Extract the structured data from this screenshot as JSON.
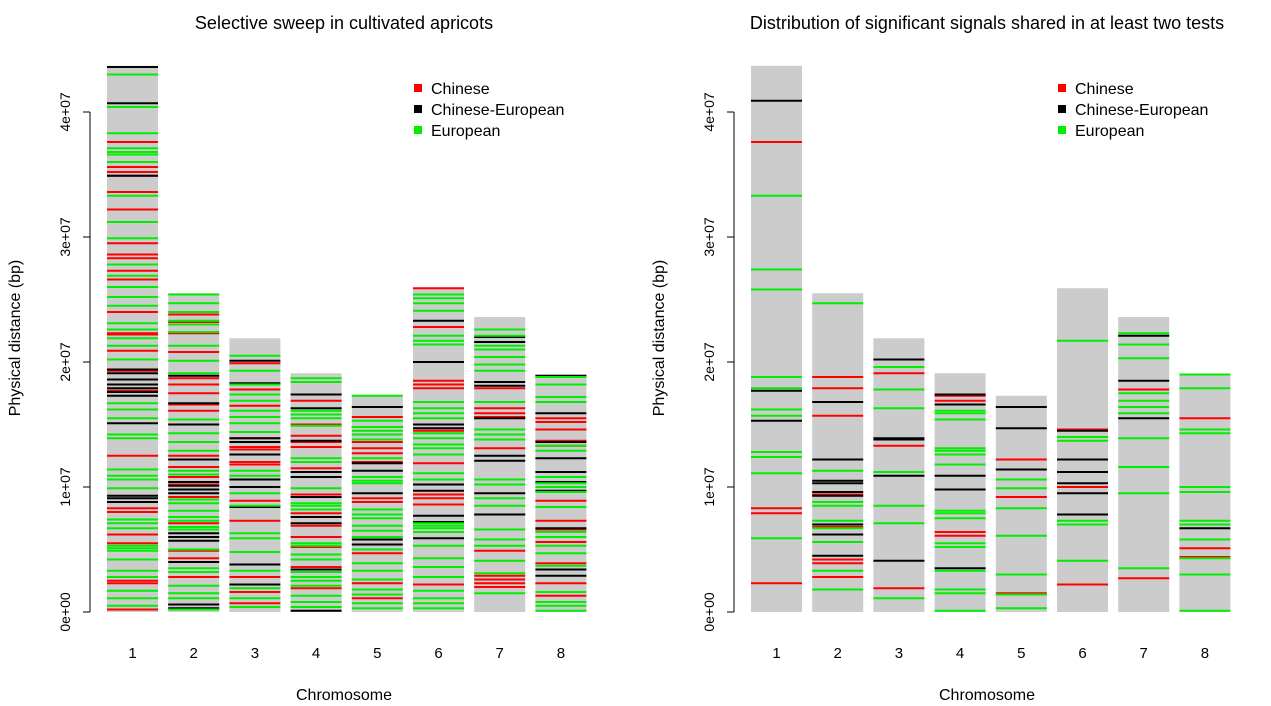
{
  "chart_data": [
    {
      "type": "bar",
      "title": "Selective sweep in cultivated apricots",
      "xlabel": "Chromosome",
      "ylabel": "Physical distance (bp)",
      "categories": [
        "1",
        "2",
        "3",
        "4",
        "5",
        "6",
        "7",
        "8"
      ],
      "chromosome_lengths": [
        43700000,
        25500000,
        21900000,
        19100000,
        17300000,
        25900000,
        23600000,
        19000000
      ],
      "ylim": [
        0,
        43700000
      ],
      "yticks": [
        0,
        10000000,
        20000000,
        30000000,
        40000000
      ],
      "ytick_labels": [
        "0e+00",
        "1e+07",
        "2e+07",
        "3e+07",
        "4e+07"
      ],
      "legend": {
        "position": "top-right",
        "entries": [
          "Chinese",
          "Chinese-European",
          "European"
        ]
      },
      "series": [
        {
          "name": "Chinese",
          "color": "#ff0000",
          "positions": [
            [
              200000,
              2300000,
              2500000,
              5500000,
              6200000,
              8000000,
              8300000,
              12500000,
              17700000,
              19300000,
              20900000,
              22200000,
              22300000,
              24000000,
              26600000,
              27300000,
              28300000,
              28600000,
              29500000,
              32200000,
              33600000,
              34900000,
              35200000,
              35600000,
              37600000,
              43600000
            ],
            [
              600000,
              2800000,
              4300000,
              4900000,
              7100000,
              9200000,
              10200000,
              10800000,
              11600000,
              12500000,
              16100000,
              16600000,
              17500000,
              18200000,
              18700000,
              20800000,
              22300000,
              23200000,
              23800000
            ],
            [
              700000,
              1600000,
              2800000,
              7300000,
              8900000,
              11800000,
              12000000,
              13000000,
              13200000,
              13900000,
              15600000,
              16500000,
              17800000,
              19900000
            ],
            [
              1900000,
              3600000,
              5200000,
              6000000,
              6900000,
              7900000,
              9400000,
              10800000,
              11500000,
              13200000,
              13600000,
              14100000,
              15000000,
              16900000,
              17400000
            ],
            [
              1100000,
              2300000,
              4700000,
              8800000,
              9100000,
              12000000,
              12700000,
              13100000,
              13600000,
              15600000
            ],
            [
              2200000,
              8600000,
              9100000,
              9400000,
              11900000,
              14500000,
              17900000,
              18200000,
              18500000,
              22800000,
              25900000
            ],
            [
              2000000,
              2300000,
              2600000,
              2900000,
              4900000,
              7800000,
              13100000,
              15600000,
              15900000,
              16300000,
              17900000
            ],
            [
              1300000,
              2300000,
              3900000,
              5600000,
              6600000,
              7300000,
              8900000,
              13300000,
              13700000,
              14600000,
              15200000,
              15500000
            ]
          ]
        },
        {
          "name": "Chinese-European",
          "color": "#000000",
          "positions": [
            [
              8800000,
              9100000,
              9300000,
              15100000,
              17300000,
              17600000,
              17900000,
              18200000,
              18600000,
              19100000,
              19400000,
              34900000,
              40700000,
              43600000
            ],
            [
              300000,
              600000,
              4000000,
              5700000,
              6000000,
              6300000,
              9500000,
              9800000,
              10100000,
              10400000,
              12200000,
              15000000,
              16700000,
              18900000
            ],
            [
              2200000,
              3800000,
              8400000,
              10000000,
              10600000,
              12600000,
              13600000,
              13900000,
              18300000,
              20100000
            ],
            [
              100000,
              3400000,
              7100000,
              7600000,
              9200000,
              10800000,
              11200000,
              13700000,
              16300000,
              17400000
            ],
            [
              5400000,
              5800000,
              9500000,
              11300000,
              11900000,
              14800000,
              16400000
            ],
            [
              5900000,
              7200000,
              7700000,
              9700000,
              10200000,
              14700000,
              15000000,
              20000000,
              23300000
            ],
            [
              7800000,
              9500000,
              12100000,
              12500000,
              15500000,
              18100000,
              18400000,
              21600000,
              22000000
            ],
            [
              2900000,
              3400000,
              6700000,
              9700000,
              10400000,
              11200000,
              12300000,
              13600000,
              15900000,
              18900000
            ]
          ]
        },
        {
          "name": "European",
          "color": "#00ee00",
          "positions": [
            [
              500000,
              1100000,
              1700000,
              2800000,
              3300000,
              4200000,
              4900000,
              5100000,
              5300000,
              6700000,
              7100000,
              7400000,
              9900000,
              10600000,
              10900000,
              11400000,
              13900000,
              14200000,
              15500000,
              16200000,
              16700000,
              20200000,
              21300000,
              21900000,
              22600000,
              23100000,
              24500000,
              25200000,
              26000000,
              26900000,
              27800000,
              29900000,
              31200000,
              33300000,
              36000000,
              36600000,
              36800000,
              37100000,
              38300000,
              40400000,
              43000000
            ],
            [
              200000,
              1100000,
              1500000,
              2100000,
              3200000,
              3500000,
              5000000,
              6600000,
              6800000,
              7300000,
              7600000,
              8100000,
              8700000,
              9000000,
              11000000,
              11300000,
              12900000,
              13600000,
              14300000,
              15400000,
              19100000,
              20100000,
              21300000,
              22400000,
              23000000,
              23300000,
              24000000,
              24700000,
              25400000
            ],
            [
              400000,
              1100000,
              1900000,
              3300000,
              4800000,
              5900000,
              6300000,
              8500000,
              9500000,
              10900000,
              11300000,
              14400000,
              15100000,
              15600000,
              16100000,
              16900000,
              17400000,
              18200000,
              19300000,
              20500000
            ],
            [
              400000,
              800000,
              1300000,
              2100000,
              2500000,
              2800000,
              3200000,
              4200000,
              4600000,
              5300000,
              5500000,
              8200000,
              8500000,
              8700000,
              9900000,
              12000000,
              12300000,
              14900000,
              15500000,
              15800000,
              16100000,
              18400000,
              18700000
            ],
            [
              300000,
              700000,
              1400000,
              1800000,
              2600000,
              3300000,
              3900000,
              5000000,
              6000000,
              6500000,
              6900000,
              7500000,
              7800000,
              8200000,
              10300000,
              10500000,
              10800000,
              12300000,
              13800000,
              14200000,
              14500000,
              14800000,
              15300000,
              17300000
            ],
            [
              300000,
              700000,
              1100000,
              1700000,
              2800000,
              3600000,
              4300000,
              5300000,
              6400000,
              6700000,
              6900000,
              7100000,
              10600000,
              11100000,
              12600000,
              13100000,
              13400000,
              13900000,
              14300000,
              15500000,
              15900000,
              16300000,
              16800000,
              21400000,
              21700000,
              22100000,
              24100000,
              24700000,
              25100000,
              25400000
            ],
            [
              1500000,
              3100000,
              4100000,
              5300000,
              5800000,
              6600000,
              8500000,
              9100000,
              10200000,
              10600000,
              13800000,
              14200000,
              14600000,
              16800000,
              19300000,
              19800000,
              20400000,
              21000000,
              21300000,
              22100000,
              22600000
            ],
            [
              100000,
              500000,
              800000,
              1600000,
              3700000,
              4700000,
              5300000,
              6000000,
              6400000,
              8400000,
              9600000,
              10000000,
              10300000,
              10800000,
              12900000,
              13300000,
              16800000,
              17200000,
              18200000,
              18800000
            ]
          ]
        }
      ]
    },
    {
      "type": "bar",
      "title": "Distribution of significant signals shared in at least two tests",
      "xlabel": "Chromosome",
      "ylabel": "Physical distance (bp)",
      "categories": [
        "1",
        "2",
        "3",
        "4",
        "5",
        "6",
        "7",
        "8"
      ],
      "chromosome_lengths": [
        43700000,
        25500000,
        21900000,
        19100000,
        17300000,
        25900000,
        23600000,
        19000000
      ],
      "ylim": [
        0,
        43700000
      ],
      "yticks": [
        0,
        10000000,
        20000000,
        30000000,
        40000000
      ],
      "ytick_labels": [
        "0e+00",
        "1e+07",
        "2e+07",
        "3e+07",
        "4e+07"
      ],
      "legend": {
        "position": "top-right",
        "entries": [
          "Chinese",
          "Chinese-European",
          "European"
        ]
      },
      "series": [
        {
          "name": "Chinese",
          "color": "#ff0000",
          "positions": [
            [
              2300000,
              7900000,
              8300000,
              37600000
            ],
            [
              2800000,
              3900000,
              4200000,
              6800000,
              9400000,
              15700000,
              17900000,
              18800000
            ],
            [
              1900000,
              13300000,
              19100000
            ],
            [
              6100000,
              6400000,
              16900000,
              17300000
            ],
            [
              1500000,
              9200000,
              12200000
            ],
            [
              2200000,
              10000000,
              14600000
            ],
            [
              2700000,
              17800000
            ],
            [
              4400000,
              5100000,
              15500000
            ]
          ]
        },
        {
          "name": "Chinese-European",
          "color": "#000000",
          "positions": [
            [
              15300000,
              17700000,
              40900000
            ],
            [
              4500000,
              6200000,
              7000000,
              9300000,
              9600000,
              10300000,
              10500000,
              12200000,
              16800000
            ],
            [
              4100000,
              10900000,
              13800000,
              13900000,
              20200000
            ],
            [
              3500000,
              9800000,
              10900000,
              16600000,
              17400000
            ],
            [
              11400000,
              14700000,
              16400000
            ],
            [
              7800000,
              9500000,
              10300000,
              11200000,
              12200000,
              14500000
            ],
            [
              15500000,
              18500000,
              22100000
            ],
            [
              6700000
            ]
          ]
        },
        {
          "name": "European",
          "color": "#00ee00",
          "positions": [
            [
              5900000,
              11100000,
              12400000,
              12800000,
              15700000,
              16200000,
              17900000,
              18800000,
              25800000,
              27400000,
              33300000
            ],
            [
              1800000,
              3300000,
              5600000,
              6700000,
              7300000,
              8500000,
              8800000,
              11300000,
              24700000
            ],
            [
              1100000,
              7100000,
              8500000,
              11200000,
              16300000,
              17800000,
              19600000
            ],
            [
              100000,
              1500000,
              1800000,
              3300000,
              5200000,
              5500000,
              7500000,
              7900000,
              8100000,
              11800000,
              12600000,
              12900000,
              13100000,
              15400000,
              15900000,
              16100000
            ],
            [
              300000,
              1400000,
              3000000,
              6100000,
              8300000,
              9900000,
              10600000
            ],
            [
              4100000,
              7000000,
              7300000,
              13700000,
              14000000,
              21700000
            ],
            [
              3500000,
              9500000,
              11600000,
              13900000,
              15900000,
              16400000,
              16900000,
              17500000,
              20300000,
              21400000,
              22300000
            ],
            [
              100000,
              3000000,
              4300000,
              5800000,
              7000000,
              7300000,
              9600000,
              10000000,
              14300000,
              14600000,
              17900000,
              19000000
            ]
          ]
        }
      ]
    }
  ]
}
